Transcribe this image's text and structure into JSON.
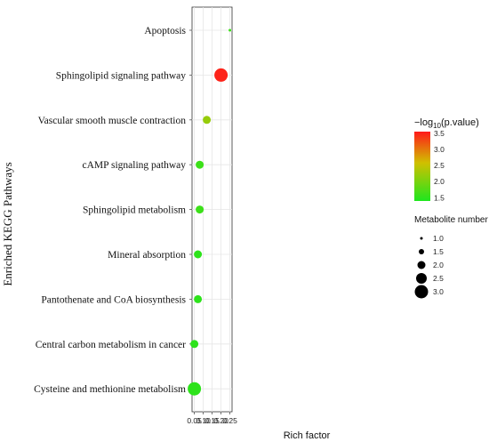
{
  "chart_data": {
    "type": "scatter",
    "title": "",
    "xlabel": "Rich factor",
    "ylabel": "Enriched KEGG Pathways",
    "xlim": [
      0.037,
      0.262
    ],
    "xticks": [
      "0.05",
      "0.10",
      "0.15",
      "0.20",
      "0.25"
    ],
    "xtick_values": [
      0.05,
      0.1,
      0.15,
      0.2,
      0.25
    ],
    "grid": true,
    "points": [
      {
        "pathway": "Apoptosis",
        "rich_factor": 0.25,
        "neg_log10_p": 1.6,
        "metabolite_number": 1
      },
      {
        "pathway": "Sphingolipid signaling pathway",
        "rich_factor": 0.2,
        "neg_log10_p": 3.5,
        "metabolite_number": 3
      },
      {
        "pathway": "Vascular smooth muscle contraction",
        "rich_factor": 0.12,
        "neg_log10_p": 2.2,
        "metabolite_number": 2
      },
      {
        "pathway": "cAMP signaling pathway",
        "rich_factor": 0.08,
        "neg_log10_p": 1.6,
        "metabolite_number": 2
      },
      {
        "pathway": "Sphingolipid metabolism",
        "rich_factor": 0.08,
        "neg_log10_p": 1.6,
        "metabolite_number": 2
      },
      {
        "pathway": "Mineral absorption",
        "rich_factor": 0.07,
        "neg_log10_p": 1.5,
        "metabolite_number": 2
      },
      {
        "pathway": "Pantothenate and CoA biosynthesis",
        "rich_factor": 0.07,
        "neg_log10_p": 1.5,
        "metabolite_number": 2
      },
      {
        "pathway": "Central carbon metabolism in cancer",
        "rich_factor": 0.05,
        "neg_log10_p": 1.5,
        "metabolite_number": 2
      },
      {
        "pathway": "Cysteine and methionine metabolism",
        "rich_factor": 0.05,
        "neg_log10_p": 1.5,
        "metabolite_number": 3
      }
    ],
    "color_legend": {
      "title_prefix": "−log",
      "title_sub": "10",
      "title_suffix": "(p.value)",
      "range": [
        1.4,
        3.55
      ],
      "ticks": [
        "3.5",
        "3.0",
        "2.5",
        "2.0",
        "1.5"
      ],
      "tick_values": [
        3.5,
        3.0,
        2.5,
        2.0,
        1.5
      ],
      "low_color": "#1ee61e",
      "high_color": "#ff1a1a"
    },
    "size_legend": {
      "title": "Metabolite number",
      "labels": [
        "1.0",
        "1.5",
        "2.0",
        "2.5",
        "3.0"
      ],
      "values": [
        1.0,
        1.5,
        2.0,
        2.5,
        3.0
      ]
    }
  }
}
